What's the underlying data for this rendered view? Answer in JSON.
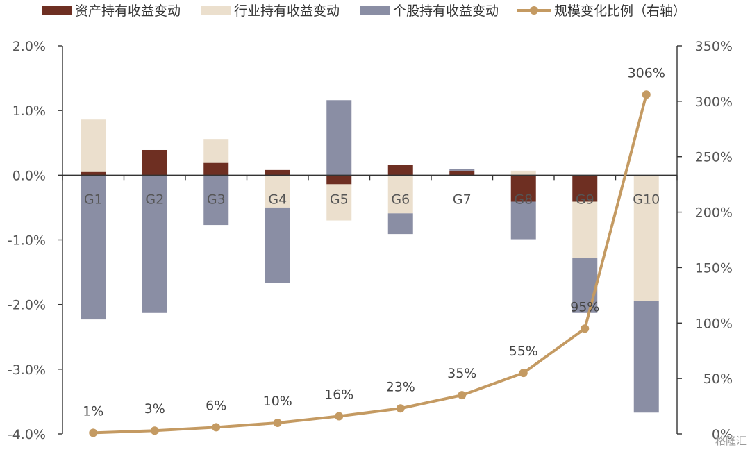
{
  "chart_data": {
    "type": "bar",
    "categories": [
      "G1",
      "G2",
      "G3",
      "G4",
      "G5",
      "G6",
      "G7",
      "G8",
      "G9",
      "G10"
    ],
    "series": [
      {
        "name": "资产持有收益变动",
        "type": "bar",
        "axis": "left",
        "color": "#6e2f22",
        "values": [
          0.05,
          0.39,
          0.19,
          0.08,
          -0.14,
          0.16,
          0.07,
          -0.41,
          -0.41,
          0.0
        ]
      },
      {
        "name": "行业持有收益变动",
        "type": "bar",
        "axis": "left",
        "color": "#ebdfcd",
        "values": [
          0.81,
          0.0,
          0.37,
          -0.5,
          -0.56,
          -0.59,
          0.0,
          0.07,
          -0.87,
          -1.95
        ]
      },
      {
        "name": "个股持有收益变动",
        "type": "bar",
        "axis": "left",
        "color": "#8a8ea4",
        "values": [
          -2.23,
          -2.13,
          -0.77,
          -1.16,
          1.16,
          -0.32,
          0.03,
          -0.58,
          -0.85,
          -1.72
        ]
      },
      {
        "name": "规模变化比例（右轴）",
        "type": "line",
        "axis": "right",
        "color": "#c49a62",
        "values": [
          1,
          3,
          6,
          10,
          16,
          23,
          35,
          55,
          95,
          306
        ],
        "labels": [
          "1%",
          "3%",
          "6%",
          "10%",
          "16%",
          "23%",
          "35%",
          "55%",
          "95%",
          "306%"
        ]
      }
    ],
    "y_left": {
      "min": -4.0,
      "max": 2.0,
      "ticks": [
        2.0,
        1.0,
        0.0,
        -1.0,
        -2.0,
        -3.0,
        -4.0
      ],
      "tick_labels": [
        "2.0%",
        "1.0%",
        "0.0%",
        "-1.0%",
        "-2.0%",
        "-3.0%",
        "-4.0%"
      ]
    },
    "y_right": {
      "min": 0,
      "max": 350,
      "ticks": [
        350,
        300,
        250,
        200,
        150,
        100,
        50,
        0
      ],
      "tick_labels": [
        "350%",
        "300%",
        "250%",
        "200%",
        "150%",
        "100%",
        "50%",
        "0%"
      ]
    },
    "legend_position": "top",
    "grid": false
  },
  "watermark": "格隆汇"
}
